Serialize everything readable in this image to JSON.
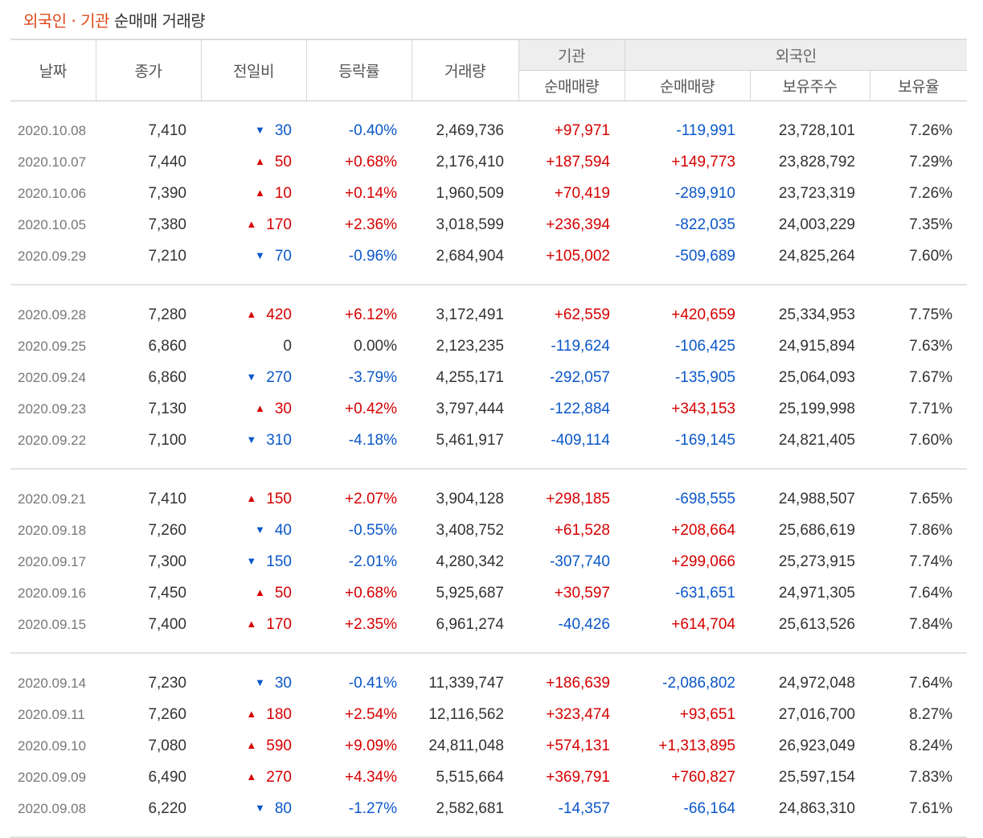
{
  "title": {
    "highlight": "외국인 · 기관",
    "rest": " 순매매 거래량"
  },
  "columns": {
    "date": "날짜",
    "close": "종가",
    "change": "전일비",
    "rate": "등락률",
    "volume": "거래량",
    "inst_group": "기관",
    "foreign_group": "외국인",
    "inst_net": "순매매량",
    "foreign_net": "순매매량",
    "holdings": "보유주수",
    "holding_ratio": "보유율"
  },
  "icons": {
    "up": "triangle-up-icon",
    "down": "triangle-down-icon"
  },
  "colors": {
    "up": "#d60000",
    "down": "#0b57c9",
    "title_accent": "#dd4a1c"
  },
  "groups": [
    {
      "rows": [
        {
          "date": "2020.10.08",
          "close": "7,410",
          "dir": "down",
          "change": "30",
          "rate": "-0.40%",
          "volume": "2,469,736",
          "inst": "+97,971",
          "foreign": "-119,991",
          "holdings": "23,728,101",
          "ratio": "7.26%"
        },
        {
          "date": "2020.10.07",
          "close": "7,440",
          "dir": "up",
          "change": "50",
          "rate": "+0.68%",
          "volume": "2,176,410",
          "inst": "+187,594",
          "foreign": "+149,773",
          "holdings": "23,828,792",
          "ratio": "7.29%"
        },
        {
          "date": "2020.10.06",
          "close": "7,390",
          "dir": "up",
          "change": "10",
          "rate": "+0.14%",
          "volume": "1,960,509",
          "inst": "+70,419",
          "foreign": "-289,910",
          "holdings": "23,723,319",
          "ratio": "7.26%"
        },
        {
          "date": "2020.10.05",
          "close": "7,380",
          "dir": "up",
          "change": "170",
          "rate": "+2.36%",
          "volume": "3,018,599",
          "inst": "+236,394",
          "foreign": "-822,035",
          "holdings": "24,003,229",
          "ratio": "7.35%"
        },
        {
          "date": "2020.09.29",
          "close": "7,210",
          "dir": "down",
          "change": "70",
          "rate": "-0.96%",
          "volume": "2,684,904",
          "inst": "+105,002",
          "foreign": "-509,689",
          "holdings": "24,825,264",
          "ratio": "7.60%"
        }
      ]
    },
    {
      "rows": [
        {
          "date": "2020.09.28",
          "close": "7,280",
          "dir": "up",
          "change": "420",
          "rate": "+6.12%",
          "volume": "3,172,491",
          "inst": "+62,559",
          "foreign": "+420,659",
          "holdings": "25,334,953",
          "ratio": "7.75%"
        },
        {
          "date": "2020.09.25",
          "close": "6,860",
          "dir": "none",
          "change": "0",
          "rate": "0.00%",
          "volume": "2,123,235",
          "inst": "-119,624",
          "foreign": "-106,425",
          "holdings": "24,915,894",
          "ratio": "7.63%"
        },
        {
          "date": "2020.09.24",
          "close": "6,860",
          "dir": "down",
          "change": "270",
          "rate": "-3.79%",
          "volume": "4,255,171",
          "inst": "-292,057",
          "foreign": "-135,905",
          "holdings": "25,064,093",
          "ratio": "7.67%"
        },
        {
          "date": "2020.09.23",
          "close": "7,130",
          "dir": "up",
          "change": "30",
          "rate": "+0.42%",
          "volume": "3,797,444",
          "inst": "-122,884",
          "foreign": "+343,153",
          "holdings": "25,199,998",
          "ratio": "7.71%"
        },
        {
          "date": "2020.09.22",
          "close": "7,100",
          "dir": "down",
          "change": "310",
          "rate": "-4.18%",
          "volume": "5,461,917",
          "inst": "-409,114",
          "foreign": "-169,145",
          "holdings": "24,821,405",
          "ratio": "7.60%"
        }
      ]
    },
    {
      "rows": [
        {
          "date": "2020.09.21",
          "close": "7,410",
          "dir": "up",
          "change": "150",
          "rate": "+2.07%",
          "volume": "3,904,128",
          "inst": "+298,185",
          "foreign": "-698,555",
          "holdings": "24,988,507",
          "ratio": "7.65%"
        },
        {
          "date": "2020.09.18",
          "close": "7,260",
          "dir": "down",
          "change": "40",
          "rate": "-0.55%",
          "volume": "3,408,752",
          "inst": "+61,528",
          "foreign": "+208,664",
          "holdings": "25,686,619",
          "ratio": "7.86%"
        },
        {
          "date": "2020.09.17",
          "close": "7,300",
          "dir": "down",
          "change": "150",
          "rate": "-2.01%",
          "volume": "4,280,342",
          "inst": "-307,740",
          "foreign": "+299,066",
          "holdings": "25,273,915",
          "ratio": "7.74%"
        },
        {
          "date": "2020.09.16",
          "close": "7,450",
          "dir": "up",
          "change": "50",
          "rate": "+0.68%",
          "volume": "5,925,687",
          "inst": "+30,597",
          "foreign": "-631,651",
          "holdings": "24,971,305",
          "ratio": "7.64%"
        },
        {
          "date": "2020.09.15",
          "close": "7,400",
          "dir": "up",
          "change": "170",
          "rate": "+2.35%",
          "volume": "6,961,274",
          "inst": "-40,426",
          "foreign": "+614,704",
          "holdings": "25,613,526",
          "ratio": "7.84%"
        }
      ]
    },
    {
      "rows": [
        {
          "date": "2020.09.14",
          "close": "7,230",
          "dir": "down",
          "change": "30",
          "rate": "-0.41%",
          "volume": "11,339,747",
          "inst": "+186,639",
          "foreign": "-2,086,802",
          "holdings": "24,972,048",
          "ratio": "7.64%"
        },
        {
          "date": "2020.09.11",
          "close": "7,260",
          "dir": "up",
          "change": "180",
          "rate": "+2.54%",
          "volume": "12,116,562",
          "inst": "+323,474",
          "foreign": "+93,651",
          "holdings": "27,016,700",
          "ratio": "8.27%"
        },
        {
          "date": "2020.09.10",
          "close": "7,080",
          "dir": "up",
          "change": "590",
          "rate": "+9.09%",
          "volume": "24,811,048",
          "inst": "+574,131",
          "foreign": "+1,313,895",
          "holdings": "26,923,049",
          "ratio": "8.24%"
        },
        {
          "date": "2020.09.09",
          "close": "6,490",
          "dir": "up",
          "change": "270",
          "rate": "+4.34%",
          "volume": "5,515,664",
          "inst": "+369,791",
          "foreign": "+760,827",
          "holdings": "25,597,154",
          "ratio": "7.83%"
        },
        {
          "date": "2020.09.08",
          "close": "6,220",
          "dir": "down",
          "change": "80",
          "rate": "-1.27%",
          "volume": "2,582,681",
          "inst": "-14,357",
          "foreign": "-66,164",
          "holdings": "24,863,310",
          "ratio": "7.61%"
        }
      ]
    }
  ]
}
